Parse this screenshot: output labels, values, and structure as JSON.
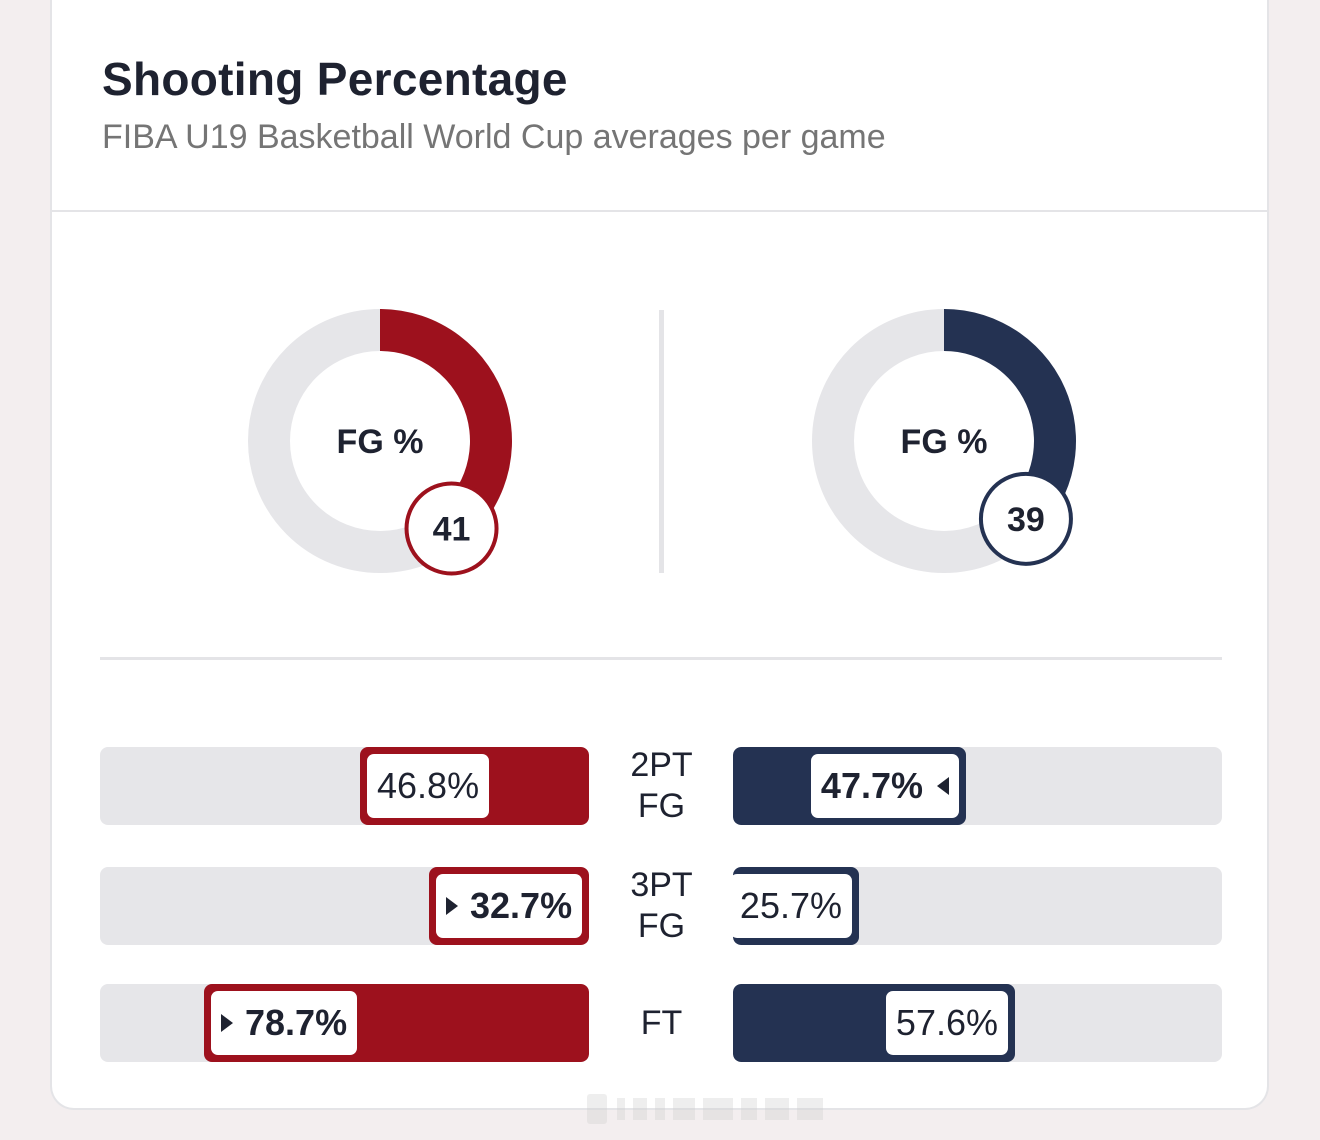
{
  "card": {
    "title": "Shooting Percentage",
    "subtitle": "FIBA U19 Basketball World Cup averages per game"
  },
  "colors": {
    "team_left": "#9d111d",
    "team_right": "#243252",
    "track": "#e6e6e9"
  },
  "chart_data": [
    {
      "type": "pie",
      "variant": "donut",
      "center_label": "FG %",
      "values": [
        41
      ],
      "value_label": "41",
      "color": "#9d111d"
    },
    {
      "type": "pie",
      "variant": "donut",
      "center_label": "FG %",
      "values": [
        39
      ],
      "value_label": "39",
      "color": "#243252"
    },
    {
      "type": "bar",
      "orientation": "horizontal-diverging",
      "categories": [
        "2PT\nFG",
        "3PT\nFG",
        "FT"
      ],
      "series": [
        {
          "values": [
            46.8,
            32.7,
            78.7
          ],
          "labels": [
            "46.8%",
            "32.7%",
            "78.7%"
          ],
          "leader": [
            false,
            true,
            true
          ],
          "color": "#9d111d"
        },
        {
          "values": [
            47.7,
            25.7,
            57.6
          ],
          "labels": [
            "47.7%",
            "25.7%",
            "57.6%"
          ],
          "leader": [
            true,
            false,
            false
          ],
          "color": "#243252"
        }
      ],
      "xlim": [
        0,
        100
      ]
    }
  ]
}
